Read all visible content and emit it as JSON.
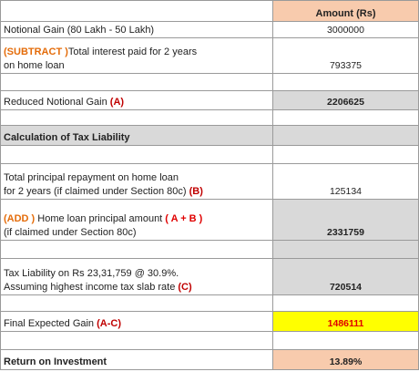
{
  "header": {
    "amount": "Amount (Rs)"
  },
  "rows": {
    "notional_gain": {
      "label": "Notional Gain (80 Lakh - 50 Lakh)",
      "value": "3000000"
    },
    "interest": {
      "prefix": "(SUBTRACT )",
      "line1_rest": "Total interest paid for 2 years",
      "line2": "on home loan",
      "value": "793375"
    },
    "reduced": {
      "label": "Reduced Notional Gain ",
      "tag": "(A)",
      "value": "2206625"
    },
    "calc_heading": {
      "label": "Calculation of Tax Liability"
    },
    "principal": {
      "line1": "Total principal repayment on home loan",
      "line2": " for 2 years (if claimed under Section 80c) ",
      "tag": "(B)",
      "value": "125134"
    },
    "add_principal": {
      "prefix": "(ADD )",
      "line1_rest": " Home loan principal amount ",
      "tag": " ( A + B )",
      "line2": "(if claimed under Section 80c)",
      "value": "2331759"
    },
    "tax": {
      "line1": "Tax Liability on Rs 23,31,759 @ 30.9%.",
      "line2": "Assuming highest income tax slab rate ",
      "tag": "(C)",
      "value": "720514"
    },
    "final": {
      "label": "Final Expected Gain ",
      "tag": "(A-C)",
      "value": "1486111"
    },
    "roi": {
      "label": "Return on Investment",
      "value": "13.89%"
    }
  }
}
